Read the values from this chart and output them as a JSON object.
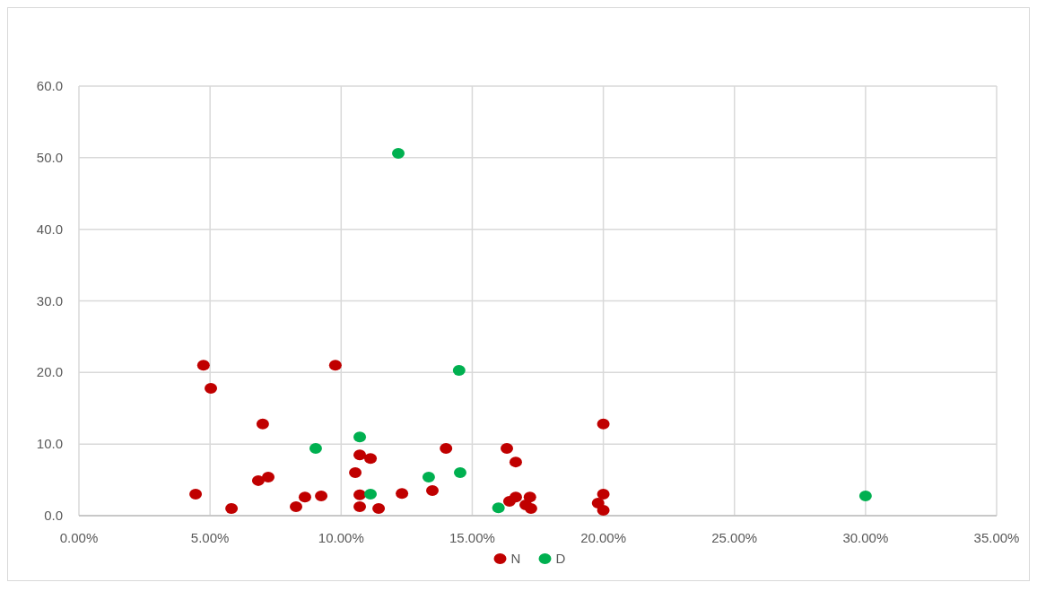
{
  "chart_data": {
    "type": "scatter",
    "xlim": [
      0,
      35
    ],
    "ylim": [
      0,
      60
    ],
    "xticks": [
      {
        "value": 0,
        "label": "0.00%"
      },
      {
        "value": 5,
        "label": "5.00%"
      },
      {
        "value": 10,
        "label": "10.00%"
      },
      {
        "value": 15,
        "label": "15.00%"
      },
      {
        "value": 20,
        "label": "20.00%"
      },
      {
        "value": 25,
        "label": "25.00%"
      },
      {
        "value": 30,
        "label": "30.00%"
      },
      {
        "value": 35,
        "label": "35.00%"
      }
    ],
    "yticks": [
      {
        "value": 0,
        "label": "0.0"
      },
      {
        "value": 10,
        "label": "10.0"
      },
      {
        "value": 20,
        "label": "20.0"
      },
      {
        "value": 30,
        "label": "30.0"
      },
      {
        "value": 40,
        "label": "40.0"
      },
      {
        "value": 50,
        "label": "50.0"
      },
      {
        "value": 60,
        "label": "60.0"
      }
    ],
    "grid": true,
    "legend": "bottom",
    "marker": "circle",
    "series": [
      {
        "name": "N",
        "color": "#c00000",
        "x": [
          4.45,
          4.75,
          5.03,
          5.82,
          6.84,
          7.22,
          7.01,
          8.28,
          8.62,
          9.24,
          9.78,
          10.54,
          10.71,
          11.12,
          10.71,
          10.71,
          11.43,
          12.32,
          13.48,
          14.0,
          16.32,
          16.66,
          16.42,
          16.66,
          17.04,
          17.2,
          17.24,
          20.0,
          20.0,
          19.8,
          20.0
        ],
        "values": [
          3.0,
          21.0,
          17.8,
          1.0,
          4.9,
          5.4,
          12.8,
          1.25,
          2.6,
          2.75,
          21.0,
          6.0,
          8.5,
          8.0,
          2.9,
          1.25,
          1.0,
          3.1,
          3.5,
          9.4,
          9.4,
          7.5,
          2.0,
          2.6,
          1.5,
          2.6,
          1.0,
          12.8,
          3.0,
          1.75,
          0.75
        ]
      },
      {
        "name": "D",
        "color": "#00b050",
        "x": [
          12.18,
          14.5,
          10.71,
          9.03,
          11.12,
          13.34,
          14.54,
          16.0,
          30.0
        ],
        "values": [
          50.6,
          20.3,
          11.0,
          9.4,
          3.0,
          5.4,
          6.0,
          1.1,
          2.75
        ]
      }
    ]
  }
}
